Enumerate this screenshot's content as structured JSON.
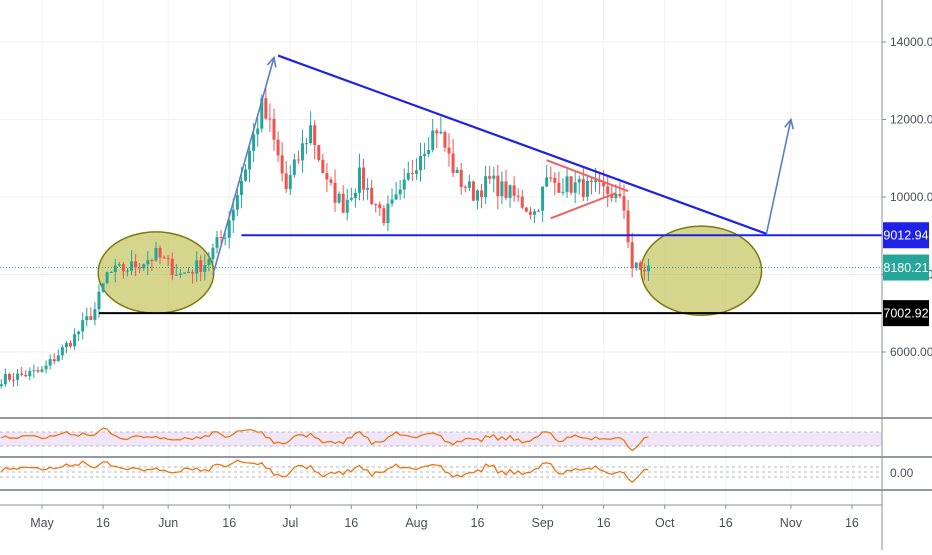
{
  "chart_data": {
    "type": "candlestick",
    "title": "",
    "xlabel": "",
    "ylabel": "",
    "ylim": [
      4200,
      15000
    ],
    "x_ticks": [
      {
        "label": "May",
        "day": 0
      },
      {
        "label": "16",
        "day": 15
      },
      {
        "label": "Jun",
        "day": 31
      },
      {
        "label": "16",
        "day": 46
      },
      {
        "label": "Jul",
        "day": 61
      },
      {
        "label": "16",
        "day": 76
      },
      {
        "label": "Aug",
        "day": 92
      },
      {
        "label": "16",
        "day": 107
      },
      {
        "label": "Sep",
        "day": 123
      },
      {
        "label": "16",
        "day": 138
      },
      {
        "label": "Oct",
        "day": 153
      },
      {
        "label": "16",
        "day": 168
      },
      {
        "label": "Nov",
        "day": 184
      },
      {
        "label": "16",
        "day": 199
      }
    ],
    "y_ticks": [
      6000,
      8000,
      10000,
      12000,
      14000
    ],
    "y_tick_labels": [
      "6000.00",
      "8000.00",
      "10000.00",
      "12000.00",
      "14000.00"
    ],
    "price_labels": [
      {
        "value": 9012.94,
        "text": "9012.94",
        "color": "#1e22e6"
      },
      {
        "value": 8180.21,
        "text": "8180.21",
        "color": "#26a69a"
      },
      {
        "value": 7002.92,
        "text": "7002.92",
        "color": "#000000"
      }
    ],
    "key_points": [
      {
        "day": -10,
        "close": 5300
      },
      {
        "day": 0,
        "close": 5500
      },
      {
        "day": 8,
        "close": 6400
      },
      {
        "day": 13,
        "close": 7100
      },
      {
        "day": 16,
        "close": 8000
      },
      {
        "day": 22,
        "close": 8200
      },
      {
        "day": 28,
        "close": 8500
      },
      {
        "day": 34,
        "close": 8000
      },
      {
        "day": 40,
        "close": 8300
      },
      {
        "day": 45,
        "close": 9100
      },
      {
        "day": 50,
        "close": 10800
      },
      {
        "day": 54,
        "close": 12300
      },
      {
        "day": 56,
        "close": 11800
      },
      {
        "day": 60,
        "close": 10200
      },
      {
        "day": 66,
        "close": 11800
      },
      {
        "day": 70,
        "close": 10300
      },
      {
        "day": 74,
        "close": 9800
      },
      {
        "day": 78,
        "close": 10500
      },
      {
        "day": 84,
        "close": 9500
      },
      {
        "day": 88,
        "close": 10000
      },
      {
        "day": 93,
        "close": 11200
      },
      {
        "day": 97,
        "close": 11800
      },
      {
        "day": 102,
        "close": 10500
      },
      {
        "day": 106,
        "close": 10100
      },
      {
        "day": 110,
        "close": 10400
      },
      {
        "day": 116,
        "close": 10000
      },
      {
        "day": 121,
        "close": 9600
      },
      {
        "day": 124,
        "close": 10400
      },
      {
        "day": 130,
        "close": 10300
      },
      {
        "day": 135,
        "close": 10200
      },
      {
        "day": 140,
        "close": 10100
      },
      {
        "day": 143,
        "close": 9700
      },
      {
        "day": 145,
        "close": 8200
      },
      {
        "day": 147,
        "close": 8100
      },
      {
        "day": 149,
        "close": 8180
      }
    ],
    "annotations": {
      "colors": {
        "upCandle": "#26a69a",
        "downCandle": "#ef5350",
        "trendline": "#1e22e6",
        "arrow": "#5b7fc2",
        "ellipseFill": "#b5b232",
        "ellipseStroke": "#7d7a10",
        "redLine": "#f06060",
        "rsiLine": "#ef6c00",
        "rsiBand": "#f1e6f7"
      },
      "descending_trendline": [
        {
          "day": 58,
          "value": 13650
        },
        {
          "day": 178,
          "value": 9050
        }
      ],
      "horizontal_resistance": {
        "value": 9012.94,
        "from_day": 49,
        "to_day": 215
      },
      "horizontal_support": {
        "value": 7002.92,
        "from_day": 14,
        "to_day": 215
      },
      "current_price_line": 8180.21,
      "ellipses": [
        {
          "cx_day": 28,
          "cy_value": 8050,
          "rx_days": 14.2,
          "ry_value": 1050
        },
        {
          "cx_day": 162,
          "cy_value": 8100,
          "rx_days": 14.8,
          "ry_value": 1150
        }
      ],
      "arrows": [
        {
          "from": {
            "day": 42,
            "value": 8000
          },
          "to": {
            "day": 57,
            "value": 13600
          }
        },
        {
          "from": {
            "day": 178,
            "value": 9050
          },
          "to": {
            "day": 184,
            "value": 12000
          }
        }
      ],
      "red_lines": [
        {
          "from": {
            "day": 124,
            "value": 10950
          },
          "to": {
            "day": 144,
            "value": 10150
          }
        },
        {
          "from": {
            "day": 125,
            "value": 9450
          },
          "to": {
            "day": 141,
            "value": 10100
          }
        }
      ]
    },
    "indicators": [
      {
        "name": "",
        "type": "oscillator",
        "levels": [
          70,
          50,
          30
        ]
      },
      {
        "name": "",
        "type": "oscillator",
        "zero_label": "0.00"
      }
    ]
  }
}
